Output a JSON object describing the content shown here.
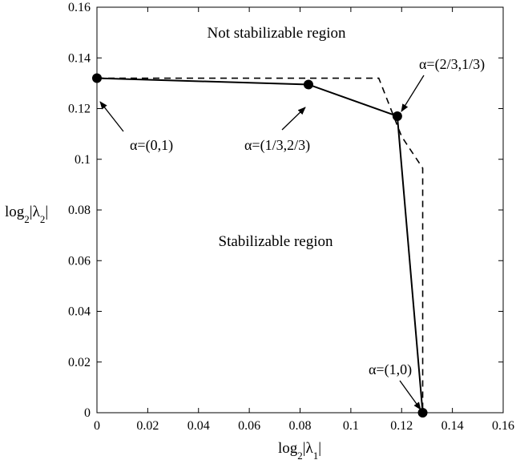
{
  "chart_data": {
    "type": "line",
    "xlim": [
      0,
      0.16
    ],
    "ylim": [
      0,
      0.16
    ],
    "x_ticks": [
      0,
      0.02,
      0.04,
      0.06,
      0.08,
      0.1,
      0.12,
      0.14,
      0.16
    ],
    "x_tick_labels": [
      "0",
      "0.02",
      "0.04",
      "0.06",
      "0.08",
      "0.1",
      "0.12",
      "0.14",
      "0.16"
    ],
    "y_ticks": [
      0,
      0.02,
      0.04,
      0.06,
      0.08,
      0.1,
      0.12,
      0.14,
      0.16
    ],
    "y_tick_labels": [
      "0",
      "0.02",
      "0.04",
      "0.06",
      "0.08",
      "0.1",
      "0.12",
      "0.14",
      "0.16"
    ],
    "xlabel": {
      "prefix": "log",
      "sub": "2",
      "body": "|λ",
      "sub2": "1",
      "suffix": "|"
    },
    "ylabel": {
      "prefix": "log",
      "sub": "2",
      "body": "|λ",
      "sub2": "2",
      "suffix": "|"
    },
    "grid": false,
    "series": [
      {
        "style": "solid",
        "color": "#000000",
        "markers": true,
        "x": [
          0,
          0.0833,
          0.1183,
          0.1283
        ],
        "y": [
          0.132,
          0.1295,
          0.117,
          0.0
        ]
      },
      {
        "style": "dashed",
        "color": "#000000",
        "markers": false,
        "x": [
          0,
          0.111,
          0.12,
          0.1283,
          0.1283
        ],
        "y": [
          0.132,
          0.132,
          0.109,
          0.0965,
          0.0
        ]
      }
    ],
    "region_labels": [
      "Not stabilizable region",
      "Stabilizable region"
    ],
    "annotations": [
      {
        "text": "α=(0,1)"
      },
      {
        "text": "α=(1/3,2/3)"
      },
      {
        "text": "α=(2/3,1/3)"
      },
      {
        "text": "α=(1,0)"
      }
    ]
  }
}
